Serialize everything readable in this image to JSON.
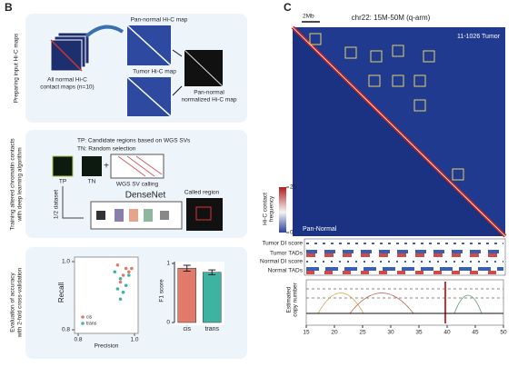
{
  "panel_b": {
    "label": "B",
    "step1": {
      "side_label": "Preparing input Hi-C maps",
      "pan_normal": "Pan-normal Hi-C map",
      "all_normal": [
        "All normal Hi-C",
        "contact maps (n=10)"
      ],
      "tumor": "Tumor Hi-C map",
      "output": [
        "Pan-normal",
        "normalized Hi-C map"
      ]
    },
    "step2": {
      "side_label": [
        "Training altered chromatin contacts",
        "with deep learning algorithm"
      ],
      "tp_desc": "TP: Candidate regions based on WGS SVs",
      "tn_desc": "TN: Random selection",
      "tp": "TP",
      "tn": "TN",
      "plus": "+",
      "wgs": "WGS SV calling",
      "model": "DenseNet",
      "split": "1/2 dataset",
      "called": "Called region"
    },
    "step3": {
      "side_label": [
        "Evaluation of accuracy",
        "with 2-fold cross-validation"
      ],
      "scatter": {
        "type": "scatter",
        "x_label": "Precision",
        "y_label": "Recall",
        "xlim": [
          0.8,
          1.0
        ],
        "ylim": [
          0.8,
          1.0
        ],
        "xticks": [
          0.8,
          {
            "value": 1,
            "label": "1.0"
          }
        ],
        "yticks": [
          0.8,
          {
            "value": 1,
            "label": "1.0"
          }
        ],
        "series": [
          {
            "name": "cis",
            "color": "#e07a6a",
            "x": [
              0.94,
              0.97,
              0.98,
              0.96,
              0.99,
              0.95
            ],
            "y": [
              0.99,
              0.98,
              0.97,
              0.96,
              0.98,
              0.94
            ]
          },
          {
            "name": "trans",
            "color": "#3fb3a2",
            "x": [
              0.93,
              0.95,
              0.96,
              0.94,
              0.97,
              0.98,
              0.95
            ],
            "y": [
              0.97,
              0.95,
              0.91,
              0.92,
              0.93,
              0.96,
              0.89
            ]
          }
        ]
      },
      "bar": {
        "type": "bar",
        "y_label": "F1 score",
        "categories": [
          "cis",
          "trans"
        ],
        "values": [
          0.92,
          0.85
        ],
        "errors": [
          0.05,
          0.04
        ],
        "colors": [
          "#e07a6a",
          "#3fb3a2"
        ],
        "ylim": [
          0,
          1
        ],
        "yticks": [
          0,
          1
        ]
      }
    }
  },
  "panel_c": {
    "label": "C",
    "title": "chr22: 15M-50M (q-arm)",
    "scale": "2Mb",
    "tumor_label": "11-1026 Tumor",
    "normal_label": "Pan-Normal",
    "colorbar": {
      "label": [
        "Hi-C contact",
        "frequency"
      ],
      "ticks": [
        0,
        25
      ]
    },
    "tracks": [
      "Tumor DI score",
      "Tumor TADs",
      "Normal DI score",
      "Normal TADs"
    ],
    "copy_number": {
      "y_label": [
        "Estimated",
        "copy number"
      ],
      "xlim": [
        15,
        50
      ],
      "xticks": [
        15,
        20,
        25,
        30,
        35,
        40,
        45,
        50
      ]
    }
  }
}
